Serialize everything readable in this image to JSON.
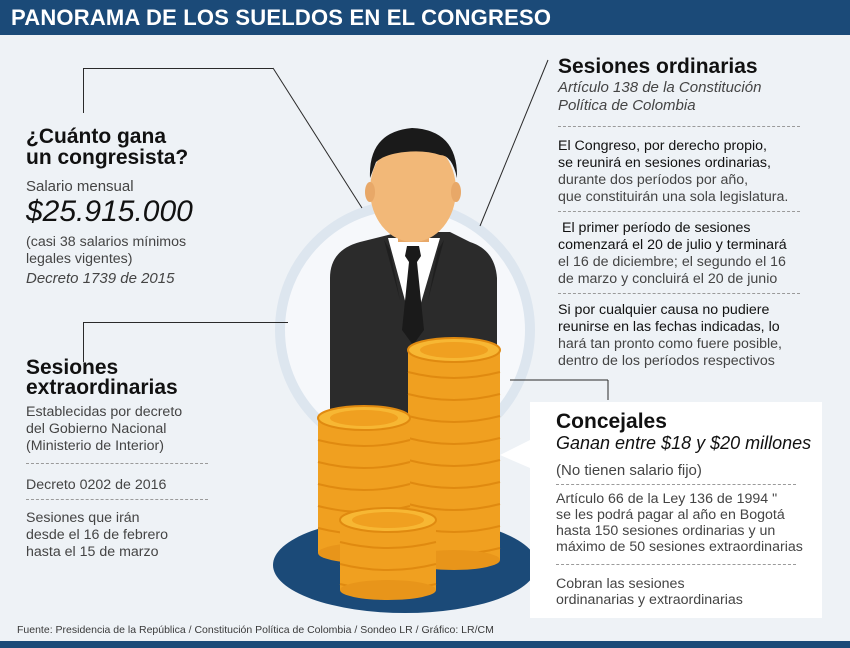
{
  "header": {
    "title": "PANORAMA DE LOS SUELDOS EN EL CONGRESO"
  },
  "salary": {
    "heading": [
      "¿Cuánto gana",
      "un congresista?"
    ],
    "label": "Salario mensual",
    "amount": "$25.915.000",
    "note": [
      "(casi 38 salarios mínimos",
      "legales vigentes)"
    ],
    "decree": "Decreto 1739 de 2015"
  },
  "extraordinary": {
    "heading": [
      "Sesiones",
      "extraordinarias"
    ],
    "established": [
      "Establecidas por decreto",
      "del Gobierno Nacional",
      "(Ministerio de Interior)"
    ],
    "decree": "Decreto 0202 de 2016",
    "sessions": [
      "Sesiones que irán",
      "desde el 16 de febrero",
      "hasta el 15 de marzo"
    ]
  },
  "ordinary": {
    "heading": "Sesiones ordinarias",
    "subheading": [
      "Artículo 138 de la Constitución",
      "Política de Colombia"
    ],
    "paragraph1": [
      "El Congreso, por derecho propio,",
      "se reunirá en sesiones ordinarias,",
      "durante dos períodos por año,",
      "que constituirán una sola legislatura."
    ],
    "paragraph2": [
      "El primer período de sesiones",
      "comenzará el 20 de julio y terminará",
      "el 16 de diciembre; el segundo el 16",
      "de marzo y concluirá el 20 de junio"
    ],
    "paragraph3": [
      "Si por cualquier causa no pudiere",
      "reunirse en las fechas indicadas, lo",
      "hará tan pronto como fuere posible,",
      "dentro de los períodos respectivos"
    ]
  },
  "councilors": {
    "heading": "Concejales",
    "subheading": "Ganan entre $18 y $20 millones",
    "note": "(No tienen salario fijo)",
    "article": [
      "Artículo 66 de la Ley 136 de 1994 \"",
      "se les podrá pagar al año en Bogotá",
      "hasta 150 sesiones ordinarias y un",
      "máximo de 50 sesiones extraordinarias"
    ],
    "charge": [
      "Cobran las sesiones",
      "ordinanarias y extraordinarias"
    ]
  },
  "footer": {
    "source": "Fuente: Presidencia de la República / Constitución Política de Colombia / Sondeo LR / Gráfico: LR/CM"
  },
  "colors": {
    "header_bg": "#1b4a78",
    "page_bg": "#eef2f6",
    "coin": "#f0a020",
    "platform": "#1b4a78",
    "suit": "#2b2b2b",
    "skin": "#f2b878"
  },
  "icons": [
    "congressman-illustration",
    "coin-stacks-illustration",
    "platform-ellipse"
  ]
}
